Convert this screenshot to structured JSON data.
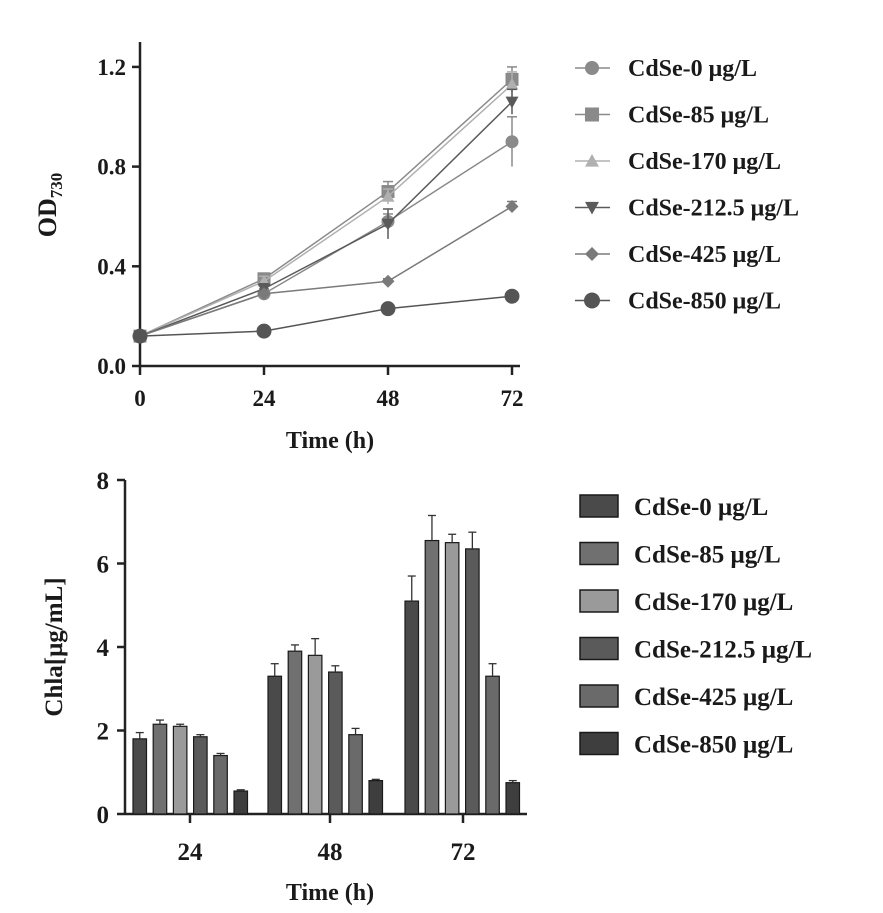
{
  "chart_data": [
    {
      "type": "line",
      "xlabel": "Time (h)",
      "ylabel": "OD",
      "ylabel_sub": "730",
      "x": [
        0,
        24,
        48,
        72
      ],
      "xticks": [
        "0",
        "24",
        "48",
        "72"
      ],
      "yticks": [
        "0.0",
        "0.4",
        "0.8",
        "1.2"
      ],
      "xlim": [
        0,
        72
      ],
      "ylim": [
        0,
        1.3
      ],
      "legend_position": "right",
      "series": [
        {
          "name": "CdSe-0 μg/L",
          "marker": "circle",
          "color": "#8a8a8a",
          "values": [
            0.12,
            0.29,
            0.58,
            0.9
          ],
          "errors": [
            0.01,
            0.02,
            0.03,
            0.1
          ]
        },
        {
          "name": "CdSe-85 μg/L",
          "marker": "square",
          "color": "#8a8a8a",
          "values": [
            0.12,
            0.35,
            0.7,
            1.15
          ],
          "errors": [
            0.01,
            0.02,
            0.04,
            0.05
          ]
        },
        {
          "name": "CdSe-170 μg/L",
          "marker": "triangle-up",
          "color": "#b0b0b0",
          "values": [
            0.12,
            0.34,
            0.68,
            1.13
          ],
          "errors": [
            0.01,
            0.02,
            0.03,
            0.05
          ]
        },
        {
          "name": "CdSe-212.5 μg/L",
          "marker": "triangle-down",
          "color": "#5a5a5a",
          "values": [
            0.12,
            0.31,
            0.57,
            1.06
          ],
          "errors": [
            0.01,
            0.02,
            0.06,
            0.05
          ]
        },
        {
          "name": "CdSe-425 μg/L",
          "marker": "diamond",
          "color": "#7a7a7a",
          "values": [
            0.12,
            0.29,
            0.34,
            0.64
          ],
          "errors": [
            0.01,
            0.01,
            0.01,
            0.02
          ]
        },
        {
          "name": "CdSe-850 μg/L",
          "marker": "circle",
          "color": "#555555",
          "values": [
            0.12,
            0.14,
            0.23,
            0.28
          ],
          "errors": [
            0.01,
            0.01,
            0.01,
            0.01
          ]
        }
      ]
    },
    {
      "type": "bar",
      "xlabel": "Time (h)",
      "ylabel": "Chla[μg/mL]",
      "categories": [
        "24",
        "48",
        "72"
      ],
      "yticks": [
        "0",
        "2",
        "4",
        "6",
        "8"
      ],
      "ylim": [
        0,
        8
      ],
      "legend_position": "right",
      "series": [
        {
          "name": "CdSe-0 μg/L",
          "color": "#4a4a4a",
          "values": [
            1.8,
            3.3,
            5.1
          ],
          "errors": [
            0.15,
            0.3,
            0.6
          ]
        },
        {
          "name": "CdSe-85 μg/L",
          "color": "#707070",
          "values": [
            2.15,
            3.9,
            6.55
          ],
          "errors": [
            0.1,
            0.15,
            0.6
          ]
        },
        {
          "name": "CdSe-170 μg/L",
          "color": "#9a9a9a",
          "values": [
            2.1,
            3.8,
            6.5
          ],
          "errors": [
            0.05,
            0.4,
            0.2
          ]
        },
        {
          "name": "CdSe-212.5 μg/L",
          "color": "#5a5a5a",
          "values": [
            1.85,
            3.4,
            6.35
          ],
          "errors": [
            0.05,
            0.15,
            0.4
          ]
        },
        {
          "name": "CdSe-425 μg/L",
          "color": "#6a6a6a",
          "values": [
            1.4,
            1.9,
            3.3
          ],
          "errors": [
            0.05,
            0.15,
            0.3
          ]
        },
        {
          "name": "CdSe-850 μg/L",
          "color": "#3e3e3e",
          "values": [
            0.55,
            0.8,
            0.75
          ],
          "errors": [
            0.03,
            0.03,
            0.05
          ]
        }
      ]
    }
  ]
}
